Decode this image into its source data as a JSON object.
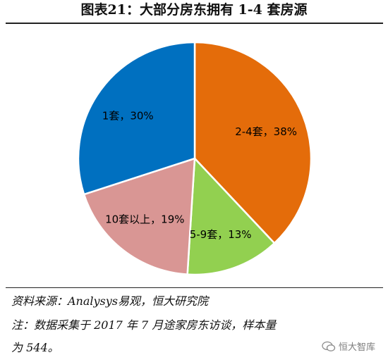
{
  "header": {
    "title": "图表21：大部分房东拥有 1-4 套房源"
  },
  "chart_data": {
    "type": "pie",
    "title": "图表21：大部分房东拥有 1-4 套房源",
    "slices": [
      {
        "label": "2-4套，38%",
        "value": 38,
        "color": "#E46C0A"
      },
      {
        "label": "5-9套，13%",
        "value": 13,
        "color": "#92D050"
      },
      {
        "label": "10套以上，19%",
        "value": 19,
        "color": "#D99694"
      },
      {
        "label": "1套，30%",
        "value": 30,
        "color": "#0070C0"
      }
    ],
    "start_angle_deg": 0,
    "direction": "clockwise"
  },
  "footer": {
    "source": "资料来源：Analysys易观，恒大研究院",
    "note_line1": "注：数据采集于 2017 年 7 月途家房东访谈，样本量",
    "note_line2": "为 544。",
    "watermark": "恒大智库"
  }
}
